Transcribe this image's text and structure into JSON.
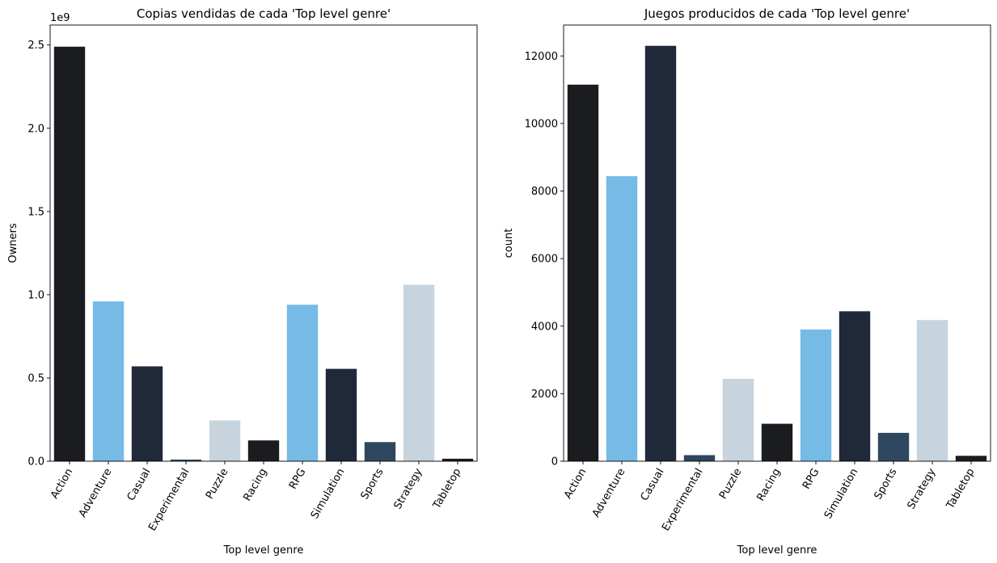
{
  "chart_data": [
    {
      "type": "bar",
      "title": "Copias vendidas de cada 'Top level genre'",
      "xlabel": "Top level genre",
      "ylabel": "Owners",
      "yexponent": "1e9",
      "categories": [
        "Action",
        "Adventure",
        "Casual",
        "Experimental",
        "Puzzle",
        "Racing",
        "RPG",
        "Simulation",
        "Sports",
        "Strategy",
        "Tabletop"
      ],
      "values": [
        2.49,
        0.96,
        0.57,
        0.01,
        0.245,
        0.125,
        0.94,
        0.555,
        0.115,
        1.06,
        0.015
      ],
      "value_scale": 1000000000,
      "colors": [
        "#1b1c20",
        "#76bae6",
        "#20293a",
        "#2f475e",
        "#c8d4dd",
        "#1b1c20",
        "#76bae6",
        "#20293a",
        "#2f475e",
        "#c8d4dd",
        "#1b1c20"
      ],
      "ylim": [
        0,
        2.62
      ],
      "yticks": [
        0,
        0.5,
        1.0,
        1.5,
        2.0,
        2.5
      ],
      "yticklabels": [
        "0.0",
        "0.5",
        "1.0",
        "1.5",
        "2.0",
        "2.5"
      ],
      "grid": false
    },
    {
      "type": "bar",
      "title": "Juegos producidos de cada 'Top level genre'",
      "xlabel": "Top level genre",
      "ylabel": "count",
      "categories": [
        "Action",
        "Adventure",
        "Casual",
        "Experimental",
        "Puzzle",
        "Racing",
        "RPG",
        "Simulation",
        "Sports",
        "Strategy",
        "Tabletop"
      ],
      "values": [
        11150,
        8440,
        12300,
        180,
        2440,
        1110,
        3900,
        4440,
        840,
        4180,
        160
      ],
      "colors": [
        "#1b1c20",
        "#76bae6",
        "#20293a",
        "#2f475e",
        "#c8d4dd",
        "#1b1c20",
        "#76bae6",
        "#20293a",
        "#2f475e",
        "#c8d4dd",
        "#1b1c20"
      ],
      "ylim": [
        0,
        12915
      ],
      "yticks": [
        0,
        2000,
        4000,
        6000,
        8000,
        10000,
        12000
      ],
      "yticklabels": [
        "0",
        "2000",
        "4000",
        "6000",
        "8000",
        "10000",
        "12000"
      ],
      "grid": false
    }
  ]
}
